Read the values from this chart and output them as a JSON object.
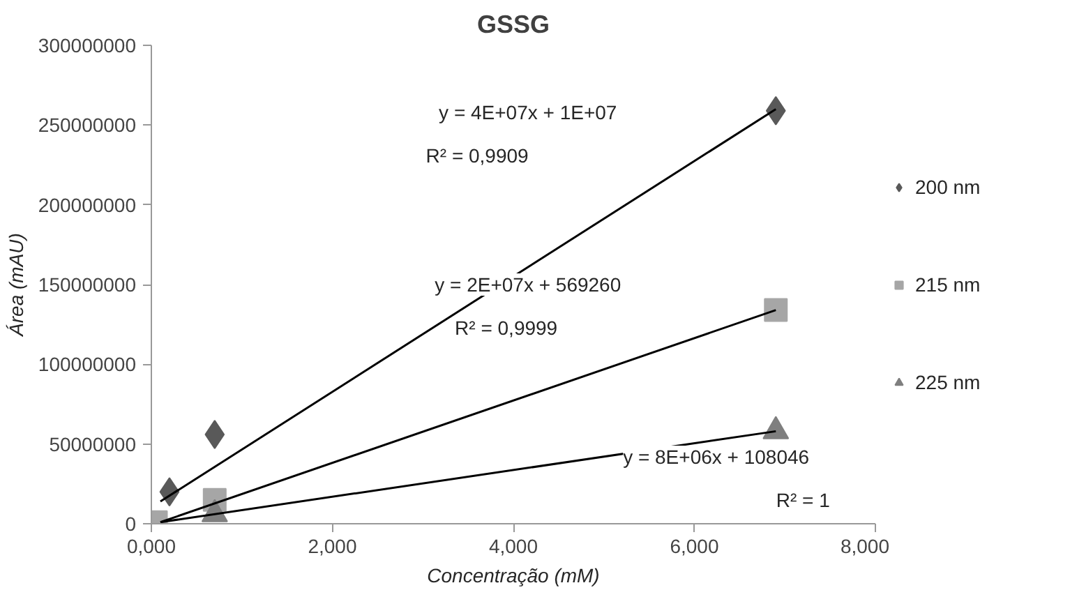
{
  "chart_data": {
    "type": "scatter",
    "title": "GSSG",
    "xlabel": "Concentração (mM)",
    "ylabel": "Área (mAU)",
    "xlim": [
      0,
      8
    ],
    "ylim": [
      0,
      300000000
    ],
    "xticks": [
      {
        "value": 0,
        "label": "0,000"
      },
      {
        "value": 2,
        "label": "2,000"
      },
      {
        "value": 4,
        "label": "4,000"
      },
      {
        "value": 6,
        "label": "6,000"
      },
      {
        "value": 8,
        "label": "8,000"
      }
    ],
    "yticks": [
      0,
      50000000,
      100000000,
      150000000,
      200000000,
      250000000,
      300000000
    ],
    "grid": false,
    "legend": "right",
    "series": [
      {
        "name": "200 nm",
        "color": "#595959",
        "marker": "diamond",
        "x": [
          0.2,
          0.7,
          6.9
        ],
        "values": [
          20000000,
          56000000,
          259000000
        ]
      },
      {
        "name": "215 nm",
        "color": "#a6a6a6",
        "marker": "square",
        "x": [
          0.05,
          0.7,
          6.9
        ],
        "values": [
          1000000,
          15000000,
          134000000
        ]
      },
      {
        "name": "225 nm",
        "color": "#7f7f7f",
        "marker": "triangle",
        "x": [
          0.7,
          6.9
        ],
        "values": [
          6000000,
          58000000
        ]
      },
      {
        "type": "line",
        "color": "#000000",
        "x": [
          0.1,
          6.9
        ],
        "values": [
          14000000,
          260000000
        ]
      },
      {
        "type": "line",
        "color": "#000000",
        "x": [
          0.1,
          6.9
        ],
        "values": [
          1000000,
          134000000
        ]
      },
      {
        "type": "line",
        "color": "#000000",
        "x": [
          0.1,
          6.9
        ],
        "values": [
          1000000,
          58000000
        ]
      }
    ],
    "annotations": [
      "y = 4E+07x + 1E+07",
      "R² = 0,9909",
      "y = 2E+07x + 569260",
      "R² = 0,9999",
      "y = 8E+06x + 108046",
      "R² = 1"
    ]
  }
}
